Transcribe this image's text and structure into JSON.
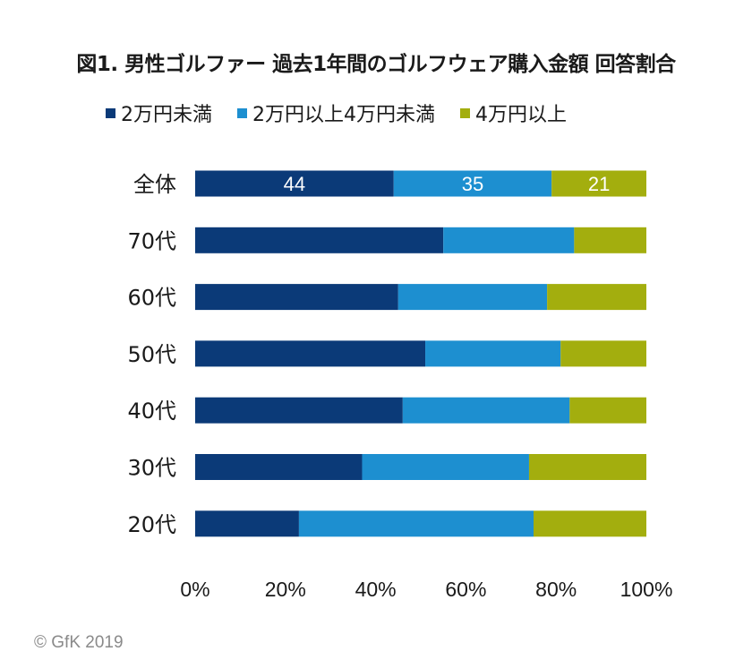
{
  "chart_data": {
    "type": "bar",
    "orientation": "horizontal",
    "stacked": true,
    "title": "図1. 男性ゴルファー 過去1年間のゴルフウェア購入金額 回答割合",
    "categories": [
      "全体",
      "70代",
      "60代",
      "50代",
      "40代",
      "30代",
      "20代"
    ],
    "series": [
      {
        "name": "2万円未満",
        "color": "#0b3a78",
        "values": [
          44,
          55,
          45,
          51,
          46,
          37,
          23
        ]
      },
      {
        "name": "2万円以上4万円未満",
        "color": "#1d8fd0",
        "values": [
          35,
          29,
          33,
          30,
          37,
          37,
          52
        ]
      },
      {
        "name": "4万円以上",
        "color": "#a3ae0e",
        "values": [
          21,
          16,
          22,
          19,
          17,
          26,
          25
        ]
      }
    ],
    "data_labels": [
      "44",
      "35",
      "21"
    ],
    "xlim": [
      0,
      100
    ],
    "xticks": [
      "0%",
      "20%",
      "40%",
      "60%",
      "80%",
      "100%"
    ],
    "grid": false,
    "legend_position": "top"
  },
  "copyright": "© GfK 2019"
}
